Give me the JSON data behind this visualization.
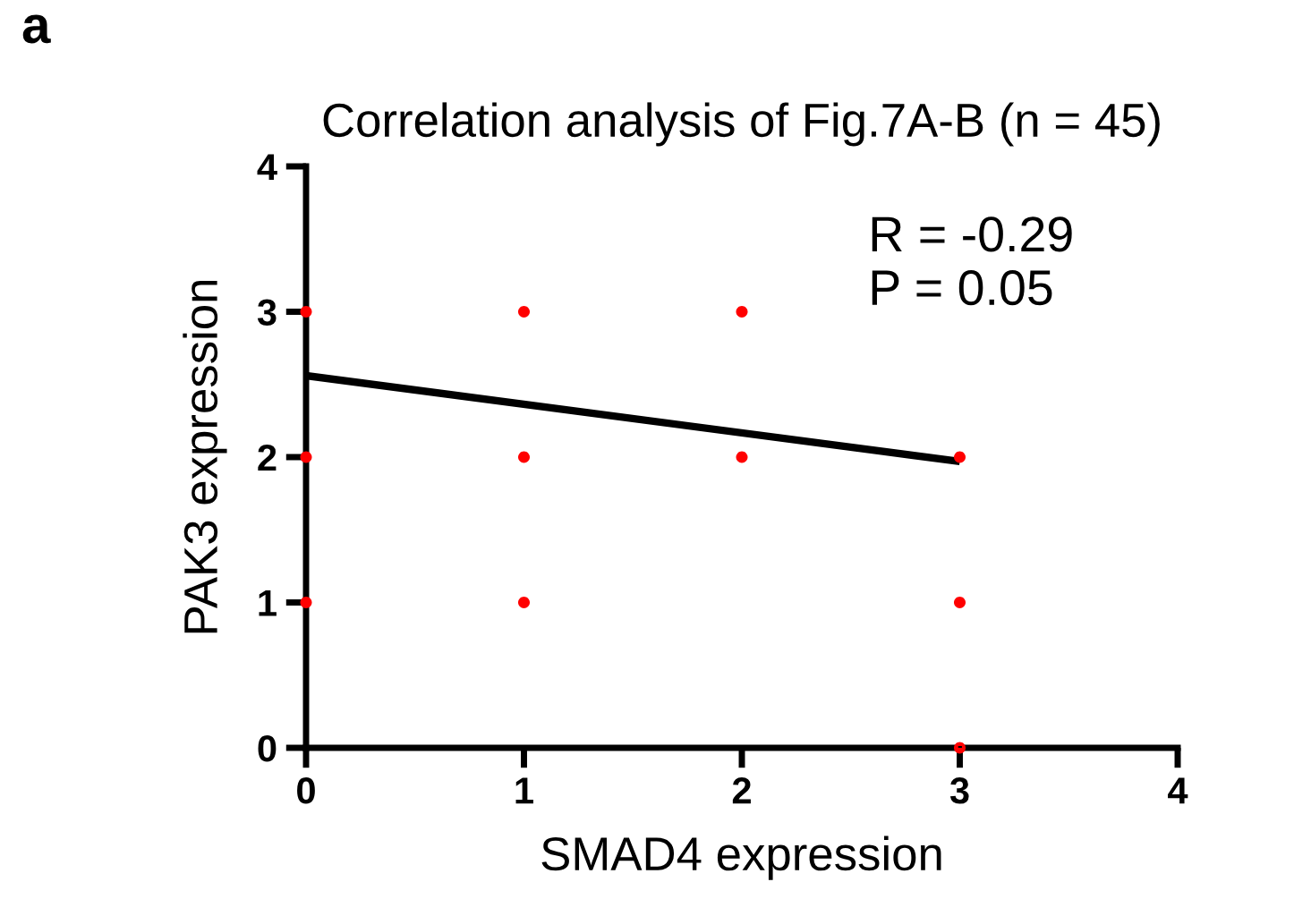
{
  "chart_data": {
    "type": "scatter",
    "title": "Correlation analysis of Fig.7A-B (n = 45)",
    "xlabel": "SMAD4 expression",
    "ylabel": "PAK3 expression",
    "annotations": [
      "a",
      "R = -0.29\nP = 0.05"
    ],
    "series": [
      {
        "color": "#ff0000",
        "marker": "circle",
        "x": [
          0,
          0,
          0,
          1,
          1,
          1,
          2,
          2,
          3,
          3,
          3
        ],
        "values": [
          3,
          2,
          1,
          3,
          2,
          1,
          3,
          2,
          2,
          1,
          0
        ]
      },
      {
        "type": "line",
        "color": "#000000",
        "marker": "none",
        "line_style": "solid",
        "x": [
          0,
          3
        ],
        "values": [
          2.56,
          1.97
        ]
      }
    ],
    "ref_lines": [
      {
        "axis": "y",
        "value": 0,
        "color": "#000000",
        "line_style": "dotted"
      }
    ],
    "xlim": [
      0,
      4
    ],
    "ylim": [
      0,
      4
    ],
    "xticks": [
      0,
      1,
      2,
      3,
      4
    ],
    "yticks": [
      0,
      1,
      2,
      3,
      4
    ],
    "grid": false,
    "legend": false
  }
}
